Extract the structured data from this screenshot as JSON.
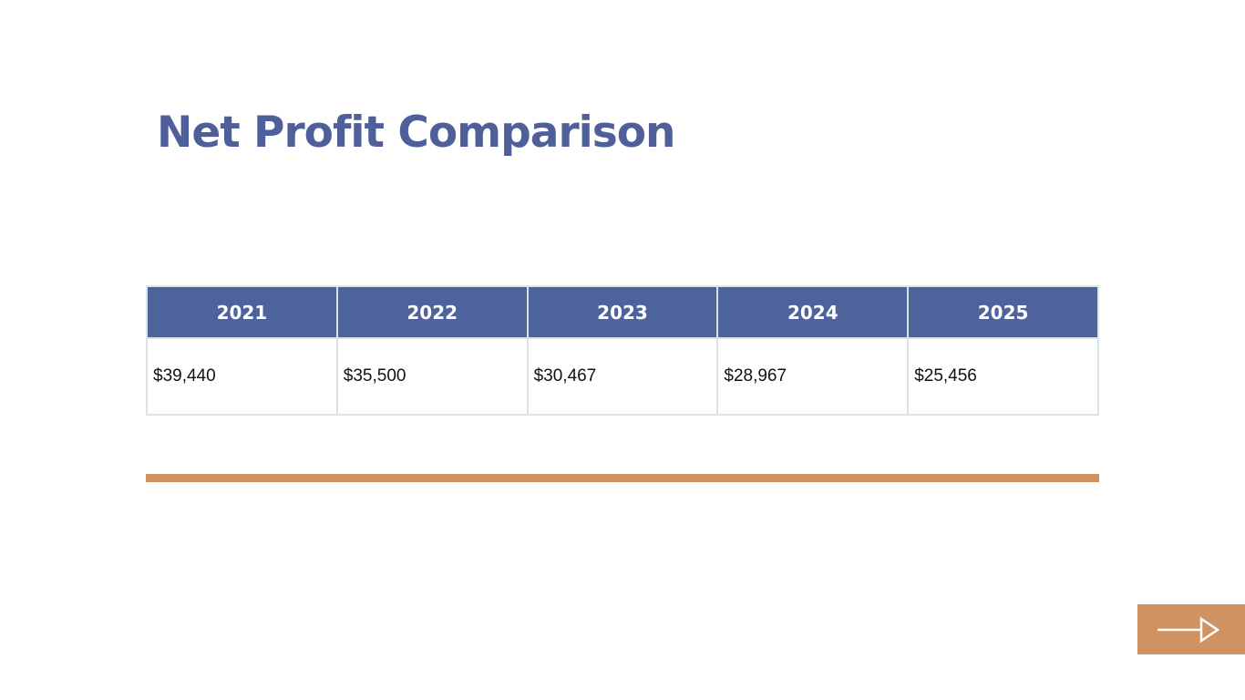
{
  "title": "Net Profit Comparison",
  "table": {
    "headers": [
      "2021",
      "2022",
      "2023",
      "2024",
      "2025"
    ],
    "rows": [
      [
        "$39,440",
        "$35,500",
        "$30,467",
        "$28,967",
        "$25,456"
      ]
    ]
  },
  "colors": {
    "title": "#4e5f9a",
    "header_bg": "#4e629b",
    "accent": "#d19262"
  },
  "next_button": {
    "icon": "arrow-right-icon"
  }
}
